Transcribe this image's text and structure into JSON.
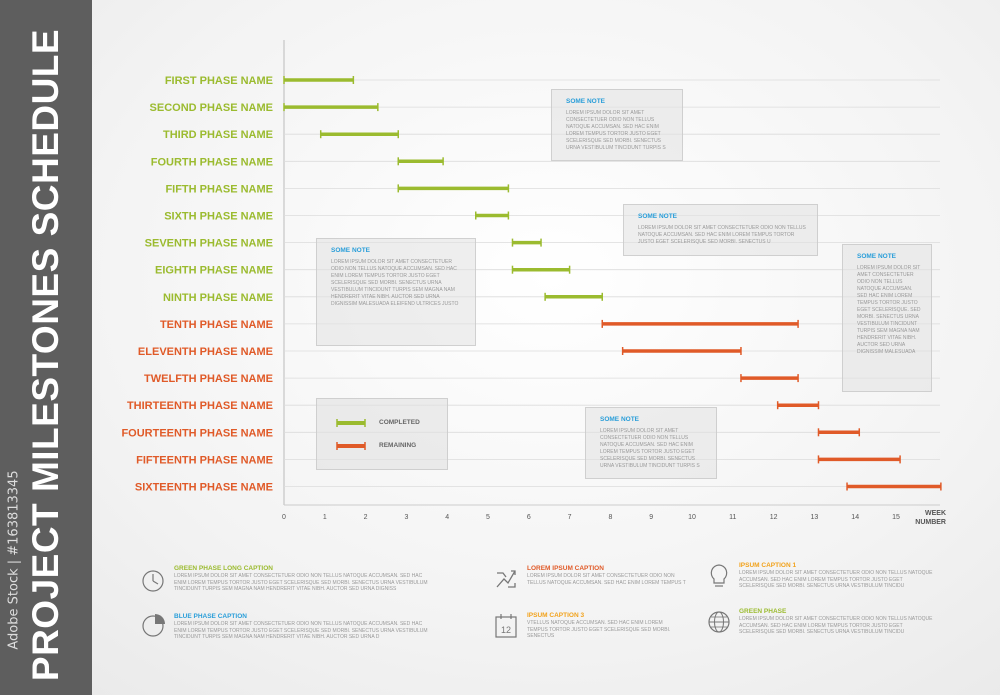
{
  "page_title": "PROJECT MILESTONES SCHEDULE",
  "credit": "Adobe Stock | #163813345",
  "colors": {
    "sidebar": "#5e5e5e",
    "completed": "#9bbb2f",
    "remaining": "#e05a28",
    "note_title": "#2a9ed9",
    "orange_caption": "#f2a21b"
  },
  "chart_data": {
    "type": "gantt",
    "xlabel": "WEEK NUMBER",
    "xlim": [
      0,
      16
    ],
    "x_ticks": [
      "0",
      "1",
      "2",
      "3",
      "4",
      "5",
      "6",
      "7",
      "8",
      "9",
      "10",
      "11",
      "12",
      "13",
      "14",
      "15"
    ],
    "tasks": [
      {
        "name": "FIRST PHASE NAME",
        "start": 0,
        "end": 1.7,
        "status": "completed"
      },
      {
        "name": "SECOND PHASE NAME",
        "start": 0,
        "end": 2.3,
        "status": "completed"
      },
      {
        "name": "THIRD PHASE NAME",
        "start": 0.9,
        "end": 2.8,
        "status": "completed"
      },
      {
        "name": "FOURTH PHASE NAME",
        "start": 2.8,
        "end": 3.9,
        "status": "completed"
      },
      {
        "name": "FIFTH PHASE NAME",
        "start": 2.8,
        "end": 5.5,
        "status": "completed"
      },
      {
        "name": "SIXTH PHASE NAME",
        "start": 4.7,
        "end": 5.5,
        "status": "completed"
      },
      {
        "name": "SEVENTH PHASE NAME",
        "start": 5.6,
        "end": 6.3,
        "status": "completed"
      },
      {
        "name": "EIGHTH PHASE NAME",
        "start": 5.6,
        "end": 7.0,
        "status": "completed"
      },
      {
        "name": "NINTH PHASE NAME",
        "start": 6.4,
        "end": 7.8,
        "status": "completed"
      },
      {
        "name": "TENTH PHASE NAME",
        "start": 7.8,
        "end": 12.6,
        "status": "remaining"
      },
      {
        "name": "ELEVENTH PHASE NAME",
        "start": 8.3,
        "end": 11.2,
        "status": "remaining"
      },
      {
        "name": "TWELFTH PHASE NAME",
        "start": 11.2,
        "end": 12.6,
        "status": "remaining"
      },
      {
        "name": "THIRTEENTH PHASE NAME",
        "start": 12.1,
        "end": 13.1,
        "status": "remaining"
      },
      {
        "name": "FOURTEENTH PHASE NAME",
        "start": 13.1,
        "end": 14.1,
        "status": "remaining"
      },
      {
        "name": "FIFTEENTH PHASE NAME",
        "start": 13.1,
        "end": 15.1,
        "status": "remaining"
      },
      {
        "name": "SIXTEENTH PHASE NAME",
        "start": 13.8,
        "end": 16.1,
        "status": "remaining"
      }
    ]
  },
  "legend": {
    "completed": "COMPLETED",
    "remaining": "REMAINING"
  },
  "notes": [
    {
      "title": "SOME NOTE",
      "text": "LOREM IPSUM DOLOR SIT AMET CONSECTETUER ODIO NON TELLUS NATOQUE ACCUMSAN. SED HAC ENIM LOREM TEMPUS TORTOR JUSTO EGET SCELERISQUE SED MORBI. SENECTUS URNA VESTIBULUM TINCIDUNT TURPIS S"
    },
    {
      "title": "SOME NOTE",
      "text": "LOREM IPSUM DOLOR SIT AMET CONSECTETUER ODIO NON TELLUS NATOQUE ACCUMSAN. SED HAC ENIM LOREM TEMPUS TORTOR JUSTO EGET SCELERISQUE SED MORBI. SENECTUS U"
    },
    {
      "title": "SOME NOTE",
      "text": "LOREM IPSUM DOLOR SIT AMET CONSECTETUER ODIO NON TELLUS NATOQUE ACCUMSAN. SED HAC ENIM LOREM TEMPUS TORTOR JUSTO EGET SCELERISQUE SED MORBI. SENECTUS URNA VESTIBULUM TINCIDUNT TURPIS SEM MAGNA NAM HENDRERIT VITAE NIBH. AUCTOR SED URNA DIGNISSIM MALESUADA ELEIFEND ULTRICES JUSTO"
    },
    {
      "title": "SOME NOTE",
      "text": "LOREM IPSUM DOLOR SIT AMET CONSECTETUER ODIO NON TELLUS NATOQUE ACCUMSAN. SED HAC ENIM LOREM TEMPUS TORTOR JUSTO EGET SCELERISQUE SED MORBI. SENECTUS URNA VESTIBULUM TINCIDUNT TURPIS S"
    },
    {
      "title": "SOME NOTE",
      "text": "LOREM IPSUM DOLOR SIT AMET CONSECTETUER ODIO NON TELLUS NATOQUE ACCUMSAN. SED HAC ENIM LOREM TEMPUS TORTOR JUSTO EGET SCELERISQUE. SED MORBI. SENECTUS URNA VESTIBULUM TINCIDUNT TURPIS SEM MAGNA NAM HENDRERIT VITAE NIBH. AUCTOR SED URNA DIGNISSIM MALESUADA"
    }
  ],
  "captions": [
    {
      "title": "GREEN PHASE LONG CAPTION",
      "text": "LOREM IPSUM DOLOR SIT AMET CONSECTETUER ODIO NON TELLUS NATOQUE ACCUMSAN. SED HAC ENIM LOREM TEMPUS TORTOR JUSTO EGET SCELERISQUE SED MORBI. SENECTUS URNA VESTIBULUM TINCIDUNT TURPIS SEM MAGNA NAM HENDRERIT VITAE NIBH. AUCTOR SED URNA DIGNISS",
      "icon": "clock-icon"
    },
    {
      "title": "BLUE PHASE CAPTION",
      "text": "LOREM IPSUM DOLOR SIT AMET CONSECTETUER ODIO NON TELLUS NATOQUE ACCUMSAN. SED HAC ENIM LOREM TEMPUS TORTOR JUSTO EGET SCELERISQUE SED MORBI. SENECTUS URNA VESTIBULUM TINCIDUNT TURPIS SEM MAGNA NAM HENDRERIT VITAE NIBH. AUCTOR SED URNA D",
      "icon": "pie-chart-icon"
    },
    {
      "title": "LOREM IPSUM CAPTION",
      "text": "LOREM IPSUM DOLOR SIT AMET CONSECTETUER ODIO NON TELLUS NATOQUE ACCUMSAN. SED HAC ENIM LOREM TEMPUS T",
      "icon": "arrows-icon"
    },
    {
      "title": "IPSUM CAPTION 3",
      "text": "VTELLUS NATOQUE ACCUMSAN. SED HAC ENIM LOREM TEMPUS TORTOR JUSTO EGET SCELERISQUE SED MORBI. SENECTUS",
      "icon": "calendar-icon"
    },
    {
      "title": "IPSUM CAPTION 1",
      "text": "LOREM IPSUM DOLOR SIT AMET CONSECTETUER ODIO NON TELLUS NATOQUE ACCUMSAN. SED HAC ENIM LOREM TEMPUS TORTOR JUSTO EGET SCELERISQUE SED MORBI. SENECTUS URNA VESTIBULUM TINCIDU",
      "icon": "lightbulb-icon"
    },
    {
      "title": "GREEN PHASE",
      "text": "LOREM IPSUM DOLOR SIT AMET CONSECTETUER ODIO NON TELLUS NATOQUE ACCUMSAN. SED HAC ENIM LOREM TEMPUS TORTOR JUSTO EGET SCELERISQUE SED MORBI. SENECTUS URNA VESTIBULUM TINCIDU",
      "icon": "globe-icon"
    }
  ],
  "calendar_icon_text": "12"
}
